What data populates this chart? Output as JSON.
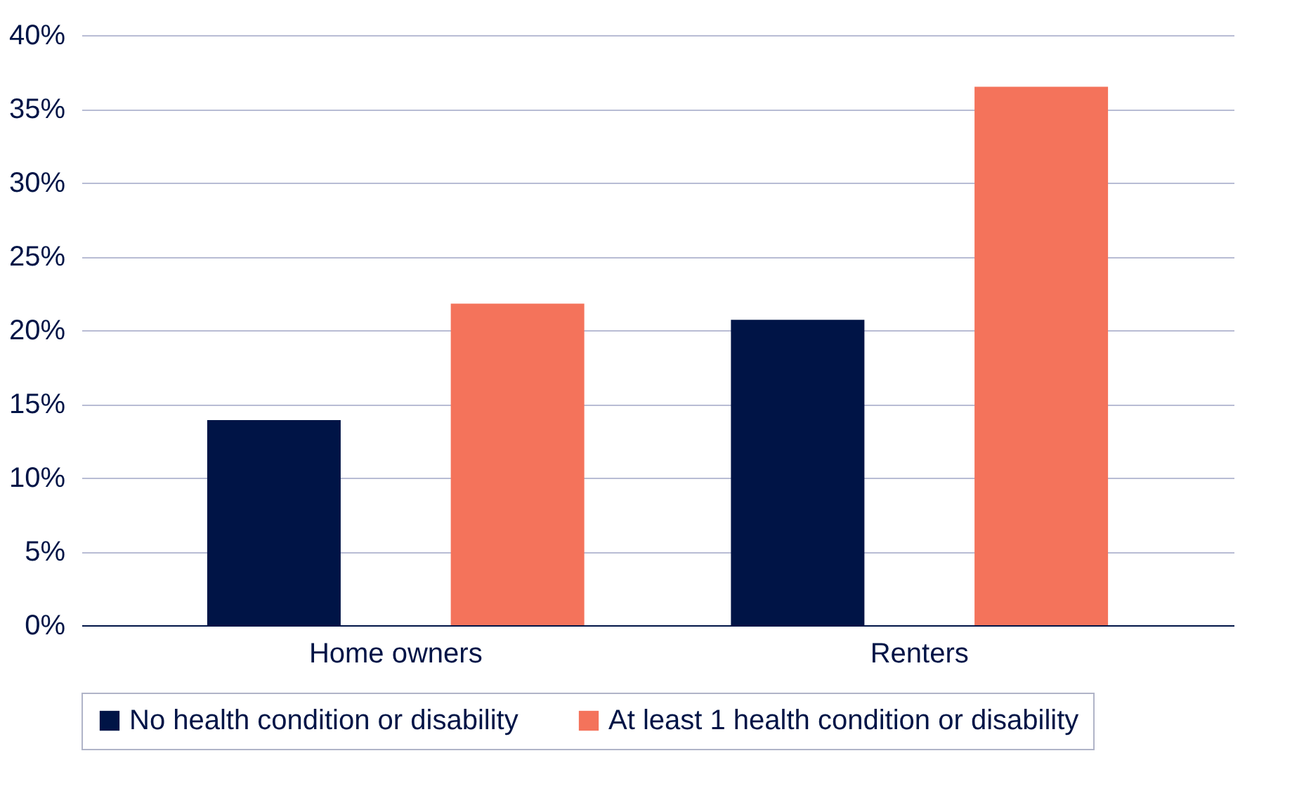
{
  "chart_data": {
    "type": "bar",
    "categories": [
      "Home owners",
      "Renters"
    ],
    "series": [
      {
        "name": "No health condition or disability",
        "color": "#001446",
        "values": [
          13.9,
          20.7
        ]
      },
      {
        "name": "At least 1 health condition or disability",
        "color": "#f4735b",
        "values": [
          21.8,
          36.5
        ]
      }
    ],
    "ylim": [
      0,
      40
    ],
    "yticks": [
      {
        "value": 0,
        "label": "0%"
      },
      {
        "value": 5,
        "label": "5%"
      },
      {
        "value": 10,
        "label": "10%"
      },
      {
        "value": 15,
        "label": "15%"
      },
      {
        "value": 20,
        "label": "20%"
      },
      {
        "value": 25,
        "label": "25%"
      },
      {
        "value": 30,
        "label": "30%"
      },
      {
        "value": 35,
        "label": "35%"
      },
      {
        "value": 40,
        "label": "40%"
      }
    ],
    "grid": "y",
    "legend": "bottom"
  }
}
